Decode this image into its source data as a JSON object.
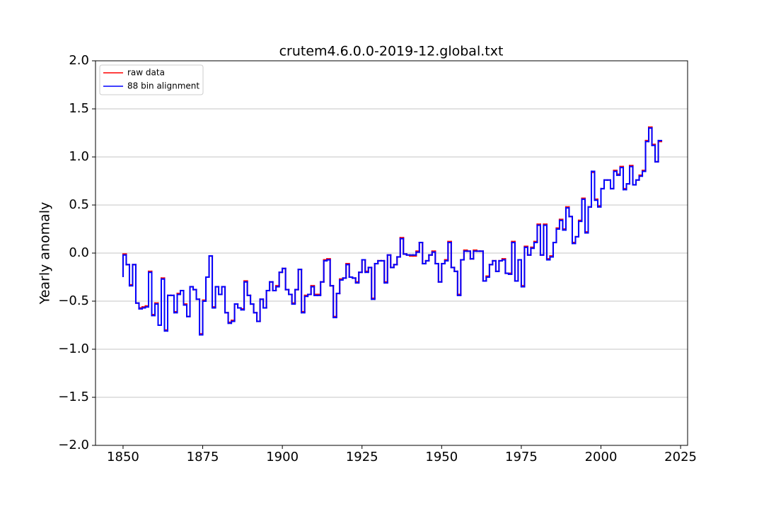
{
  "chart_data": {
    "type": "step",
    "title": "crutem4.6.0.0-2019-12.global.txt",
    "ylabel": "Yearly anomaly",
    "x": [
      1850,
      1851,
      1852,
      1853,
      1854,
      1855,
      1856,
      1857,
      1858,
      1859,
      1860,
      1861,
      1862,
      1863,
      1864,
      1865,
      1866,
      1867,
      1868,
      1869,
      1870,
      1871,
      1872,
      1873,
      1874,
      1875,
      1876,
      1877,
      1878,
      1879,
      1880,
      1881,
      1882,
      1883,
      1884,
      1885,
      1886,
      1887,
      1888,
      1889,
      1890,
      1891,
      1892,
      1893,
      1894,
      1895,
      1896,
      1897,
      1898,
      1899,
      1900,
      1901,
      1902,
      1903,
      1904,
      1905,
      1906,
      1907,
      1908,
      1909,
      1910,
      1911,
      1912,
      1913,
      1914,
      1915,
      1916,
      1917,
      1918,
      1919,
      1920,
      1921,
      1922,
      1923,
      1924,
      1925,
      1926,
      1927,
      1928,
      1929,
      1930,
      1931,
      1932,
      1933,
      1934,
      1935,
      1936,
      1937,
      1938,
      1939,
      1940,
      1941,
      1942,
      1943,
      1944,
      1945,
      1946,
      1947,
      1948,
      1949,
      1950,
      1951,
      1952,
      1953,
      1954,
      1955,
      1956,
      1957,
      1958,
      1959,
      1960,
      1961,
      1962,
      1963,
      1964,
      1965,
      1966,
      1967,
      1968,
      1969,
      1970,
      1971,
      1972,
      1973,
      1974,
      1975,
      1976,
      1977,
      1978,
      1979,
      1980,
      1981,
      1982,
      1983,
      1984,
      1985,
      1986,
      1987,
      1988,
      1989,
      1990,
      1991,
      1992,
      1993,
      1994,
      1995,
      1996,
      1997,
      1998,
      1999,
      2000,
      2001,
      2002,
      2003,
      2004,
      2005,
      2006,
      2007,
      2008,
      2009,
      2010,
      2011,
      2012,
      2013,
      2014,
      2015,
      2016,
      2017,
      2018,
      2019
    ],
    "series": [
      {
        "name": "raw data",
        "color": "#ff0000",
        "values": [
          -0.25,
          -0.01,
          -0.12,
          -0.33,
          -0.12,
          -0.52,
          -0.57,
          -0.56,
          -0.55,
          -0.19,
          -0.64,
          -0.52,
          -0.75,
          -0.26,
          -0.8,
          -0.44,
          -0.44,
          -0.61,
          -0.42,
          -0.39,
          -0.53,
          -0.66,
          -0.35,
          -0.38,
          -0.48,
          -0.84,
          -0.49,
          -0.25,
          -0.03,
          -0.56,
          -0.35,
          -0.43,
          -0.35,
          -0.62,
          -0.72,
          -0.7,
          -0.53,
          -0.57,
          -0.58,
          -0.29,
          -0.44,
          -0.53,
          -0.62,
          -0.71,
          -0.48,
          -0.57,
          -0.39,
          -0.3,
          -0.39,
          -0.34,
          -0.2,
          -0.16,
          -0.38,
          -0.43,
          -0.52,
          -0.38,
          -0.17,
          -0.61,
          -0.44,
          -0.43,
          -0.34,
          -0.43,
          -0.43,
          -0.3,
          -0.07,
          -0.06,
          -0.34,
          -0.66,
          -0.42,
          -0.27,
          -0.26,
          -0.11,
          -0.25,
          -0.26,
          -0.3,
          -0.2,
          -0.07,
          -0.19,
          -0.15,
          -0.47,
          -0.11,
          -0.08,
          -0.08,
          -0.3,
          -0.02,
          -0.15,
          -0.12,
          -0.04,
          0.16,
          -0.01,
          -0.02,
          -0.03,
          -0.03,
          0.02,
          0.11,
          -0.11,
          -0.08,
          -0.02,
          0.02,
          -0.11,
          -0.3,
          -0.11,
          -0.07,
          0.12,
          -0.15,
          -0.19,
          -0.43,
          -0.07,
          0.03,
          0.02,
          -0.06,
          0.03,
          0.02,
          0.02,
          -0.29,
          -0.24,
          -0.12,
          -0.08,
          -0.19,
          -0.08,
          -0.06,
          -0.21,
          -0.21,
          0.12,
          -0.29,
          -0.07,
          -0.34,
          0.07,
          -0.02,
          0.06,
          0.12,
          0.3,
          -0.02,
          0.3,
          -0.06,
          -0.03,
          0.11,
          0.26,
          0.35,
          0.25,
          0.48,
          0.38,
          0.11,
          0.17,
          0.34,
          0.57,
          0.22,
          0.48,
          0.84,
          0.56,
          0.49,
          0.67,
          0.76,
          0.76,
          0.67,
          0.86,
          0.82,
          0.9,
          0.67,
          0.72,
          0.91,
          0.71,
          0.76,
          0.81,
          0.86,
          1.17,
          1.31,
          1.13,
          0.95,
          1.16
        ]
      },
      {
        "name": "88 bin alignment",
        "color": "#0000ff",
        "values": [
          -0.25,
          -0.02,
          -0.12,
          -0.34,
          -0.12,
          -0.52,
          -0.58,
          -0.57,
          -0.56,
          -0.2,
          -0.65,
          -0.53,
          -0.75,
          -0.27,
          -0.81,
          -0.44,
          -0.44,
          -0.62,
          -0.43,
          -0.39,
          -0.54,
          -0.66,
          -0.35,
          -0.38,
          -0.48,
          -0.85,
          -0.5,
          -0.25,
          -0.03,
          -0.57,
          -0.35,
          -0.43,
          -0.35,
          -0.62,
          -0.73,
          -0.71,
          -0.53,
          -0.57,
          -0.59,
          -0.3,
          -0.44,
          -0.53,
          -0.62,
          -0.71,
          -0.48,
          -0.57,
          -0.39,
          -0.3,
          -0.39,
          -0.35,
          -0.2,
          -0.16,
          -0.38,
          -0.43,
          -0.53,
          -0.38,
          -0.17,
          -0.62,
          -0.45,
          -0.43,
          -0.35,
          -0.44,
          -0.44,
          -0.3,
          -0.08,
          -0.07,
          -0.34,
          -0.67,
          -0.42,
          -0.28,
          -0.26,
          -0.12,
          -0.25,
          -0.26,
          -0.31,
          -0.2,
          -0.07,
          -0.2,
          -0.15,
          -0.48,
          -0.11,
          -0.08,
          -0.08,
          -0.31,
          -0.02,
          -0.15,
          -0.12,
          -0.04,
          0.15,
          -0.01,
          -0.02,
          -0.02,
          -0.02,
          0.01,
          0.11,
          -0.11,
          -0.08,
          -0.02,
          0.01,
          -0.11,
          -0.3,
          -0.11,
          -0.08,
          0.11,
          -0.15,
          -0.19,
          -0.44,
          -0.07,
          0.02,
          0.02,
          -0.06,
          0.02,
          0.02,
          0.02,
          -0.29,
          -0.25,
          -0.12,
          -0.08,
          -0.19,
          -0.08,
          -0.07,
          -0.21,
          -0.22,
          0.11,
          -0.29,
          -0.07,
          -0.35,
          0.06,
          -0.02,
          0.05,
          0.11,
          0.29,
          -0.02,
          0.29,
          -0.07,
          -0.04,
          0.11,
          0.25,
          0.34,
          0.24,
          0.47,
          0.38,
          0.1,
          0.17,
          0.33,
          0.56,
          0.21,
          0.48,
          0.85,
          0.55,
          0.48,
          0.67,
          0.76,
          0.76,
          0.67,
          0.85,
          0.81,
          0.89,
          0.66,
          0.72,
          0.9,
          0.71,
          0.76,
          0.8,
          0.85,
          1.16,
          1.3,
          1.12,
          0.95,
          1.17
        ]
      }
    ],
    "xlim": [
      1841.35,
      2027.2
    ],
    "ylim": [
      -2.0,
      2.0
    ],
    "xticks": [
      1850,
      1875,
      1900,
      1925,
      1950,
      1975,
      2000,
      2025
    ],
    "yticks": [
      {
        "value": -2.0,
        "label": "−2.0"
      },
      {
        "value": -1.5,
        "label": "−1.5"
      },
      {
        "value": -1.0,
        "label": "−1.0"
      },
      {
        "value": -0.5,
        "label": "−0.5"
      },
      {
        "value": 0.0,
        "label": "0.0"
      },
      {
        "value": 0.5,
        "label": "0.5"
      },
      {
        "value": 1.0,
        "label": "1.0"
      },
      {
        "value": 1.5,
        "label": "1.5"
      },
      {
        "value": 2.0,
        "label": "2.0"
      }
    ],
    "grid": "y",
    "legend": "upper left"
  }
}
